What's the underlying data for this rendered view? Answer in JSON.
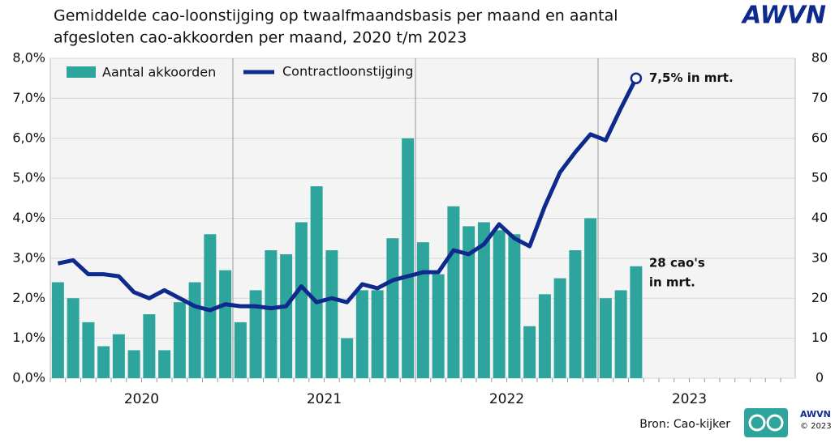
{
  "chart_data": {
    "type": "bar-line",
    "title": [
      "Gemiddelde cao-loonstijging op twaalfmaandsbasis per maand en aantal",
      "afgesloten cao-akkoorden per maand, 2020 t/m 2023"
    ],
    "logo": "AWVN",
    "source": "Bron: Cao-kijker",
    "footer_logo": [
      "AWVN",
      "© 2023"
    ],
    "year_labels": [
      "2020",
      "2021",
      "2022",
      "2023"
    ],
    "categories": [
      null,
      null,
      null,
      null,
      null,
      null,
      null,
      null,
      null,
      null,
      null,
      null,
      null,
      null,
      null,
      null,
      null,
      null,
      null,
      null,
      null,
      null,
      null,
      null,
      null,
      null,
      null,
      null,
      null,
      null,
      null,
      null,
      null,
      null,
      null,
      null,
      null,
      null,
      null,
      null,
      null,
      null,
      null,
      null,
      null,
      null,
      null,
      null
    ],
    "series": [
      {
        "name": "Aantal akkoorden",
        "type": "bar",
        "axis": "y2",
        "color": "#2ea59c",
        "values": [
          24,
          20,
          14,
          8,
          11,
          7,
          16,
          7,
          19,
          24,
          36,
          27,
          14,
          22,
          32,
          31,
          39,
          48,
          32,
          10,
          22,
          22,
          35,
          60,
          34,
          26,
          43,
          38,
          39,
          37,
          36,
          13,
          21,
          25,
          32,
          40,
          20,
          22,
          28,
          null,
          null,
          null,
          null,
          null,
          null,
          null,
          null,
          null
        ]
      },
      {
        "name": "Contractloonstijging",
        "type": "line",
        "color": "#0d2a8c",
        "values": [
          2.87,
          2.95,
          2.6,
          2.6,
          2.55,
          2.15,
          2.0,
          2.2,
          2.0,
          1.8,
          1.7,
          1.85,
          1.8,
          1.8,
          1.75,
          1.8,
          2.3,
          1.9,
          2.0,
          1.9,
          2.35,
          2.25,
          2.45,
          2.55,
          2.65,
          2.65,
          3.2,
          3.1,
          3.35,
          3.85,
          3.5,
          3.3,
          4.3,
          5.15,
          5.65,
          6.1,
          5.95,
          6.75,
          7.5,
          null,
          null,
          null,
          null,
          null,
          null,
          null,
          null,
          null
        ]
      }
    ],
    "annotations": [
      "7,5% in mrt.",
      "28 cao's",
      "in mrt."
    ],
    "ylim": [
      0,
      8
    ],
    "yticks": [
      {
        "value": 0,
        "label": "0,0%"
      },
      {
        "value": 1,
        "label": "1,0%"
      },
      {
        "value": 2,
        "label": "2,0%"
      },
      {
        "value": 3,
        "label": "3,0%"
      },
      {
        "value": 4,
        "label": "4,0%"
      },
      {
        "value": 5,
        "label": "5,0%"
      },
      {
        "value": 6,
        "label": "6,0%"
      },
      {
        "value": 7,
        "label": "7,0%"
      },
      {
        "value": 8,
        "label": "8,0%"
      }
    ],
    "y2lim": [
      0,
      80
    ],
    "y2ticks": [
      0,
      10,
      20,
      30,
      40,
      50,
      60,
      70,
      80
    ],
    "grid": true
  }
}
